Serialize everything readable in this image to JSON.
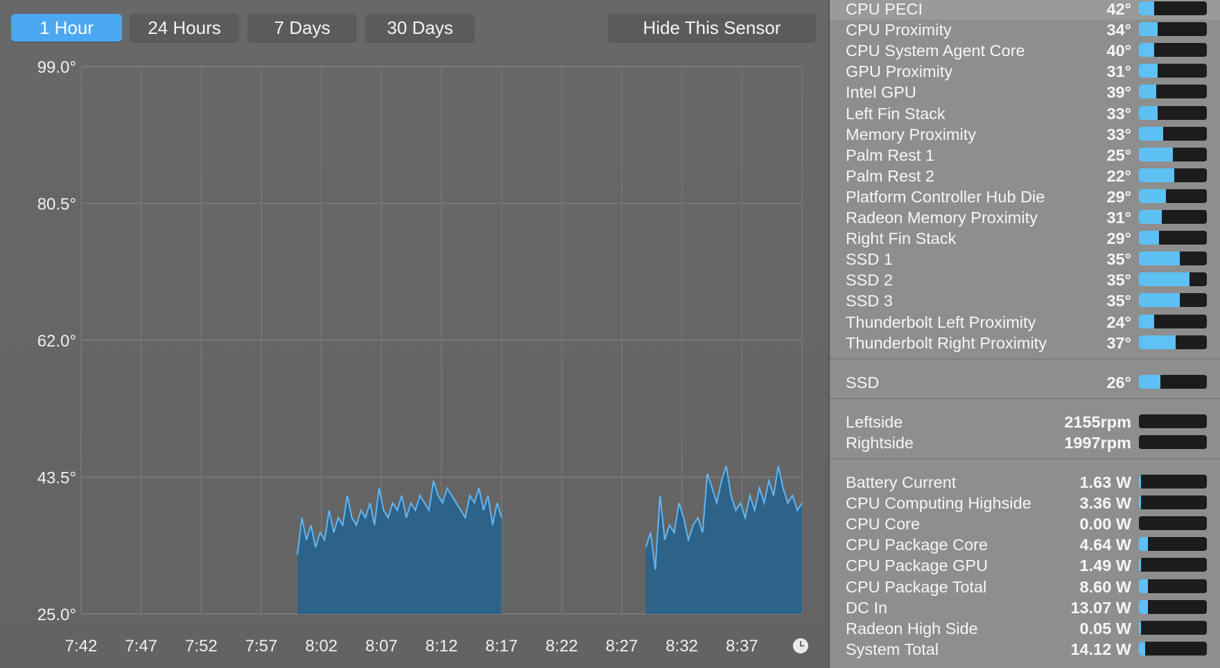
{
  "tabs": [
    {
      "label": "1 Hour",
      "active": true
    },
    {
      "label": "24 Hours",
      "active": false
    },
    {
      "label": "7 Days",
      "active": false
    },
    {
      "label": "30 Days",
      "active": false
    }
  ],
  "hide_button_label": "Hide This Sensor",
  "colors": {
    "accent": "#4aa8f2",
    "area_fill": "#2d6289",
    "line": "#5fb8f5",
    "bar_fill": "#5ec1f4",
    "bar_track": "#1c1c1c"
  },
  "chart_data": {
    "type": "area",
    "title": "",
    "xlabel": "",
    "ylabel": "",
    "ylim": [
      25.0,
      99.0
    ],
    "y_ticks": [
      "99.0°",
      "80.5°",
      "62.0°",
      "43.5°",
      "25.0°"
    ],
    "x_ticks": [
      "7:42",
      "7:47",
      "7:52",
      "7:57",
      "8:02",
      "8:07",
      "8:12",
      "8:17",
      "8:22",
      "8:27",
      "8:32",
      "8:37"
    ],
    "grid": true,
    "legend": "none",
    "segments": [
      {
        "start": "8:00",
        "end": "8:17",
        "values": [
          33,
          38,
          35,
          37,
          34,
          36,
          35,
          39,
          36,
          38,
          37,
          41,
          38,
          37,
          39,
          38,
          40,
          37,
          42,
          39,
          38,
          40,
          39,
          41,
          38,
          40,
          39,
          41,
          40,
          39,
          43,
          41,
          40,
          42,
          41,
          40,
          39,
          38,
          41,
          40,
          42,
          39,
          41,
          37,
          40,
          38
        ]
      },
      {
        "start": "8:29",
        "end": "8:42",
        "values": [
          34,
          36,
          31,
          41,
          35,
          37,
          36,
          40,
          38,
          35,
          37,
          38,
          36,
          44,
          42,
          40,
          43,
          45,
          41,
          39,
          40,
          38,
          41,
          39,
          42,
          40,
          43,
          41,
          45,
          42,
          40,
          41,
          39,
          40
        ]
      }
    ]
  },
  "temperature_sensors": [
    {
      "name": "CPU PECI",
      "value": "42°",
      "level": 0.22
    },
    {
      "name": "CPU Proximity",
      "value": "34°",
      "level": 0.28
    },
    {
      "name": "CPU System Agent Core",
      "value": "40°",
      "level": 0.22
    },
    {
      "name": "GPU Proximity",
      "value": "31°",
      "level": 0.28
    },
    {
      "name": "Intel GPU",
      "value": "39°",
      "level": 0.26
    },
    {
      "name": "Left Fin Stack",
      "value": "33°",
      "level": 0.28
    },
    {
      "name": "Memory Proximity",
      "value": "33°",
      "level": 0.36
    },
    {
      "name": "Palm Rest 1",
      "value": "25°",
      "level": 0.5
    },
    {
      "name": "Palm Rest 2",
      "value": "22°",
      "level": 0.52
    },
    {
      "name": "Platform Controller Hub Die",
      "value": "29°",
      "level": 0.4
    },
    {
      "name": "Radeon Memory Proximity",
      "value": "31°",
      "level": 0.34
    },
    {
      "name": "Right Fin Stack",
      "value": "29°",
      "level": 0.3
    },
    {
      "name": "SSD 1",
      "value": "35°",
      "level": 0.6
    },
    {
      "name": "SSD 2",
      "value": "35°",
      "level": 0.74
    },
    {
      "name": "SSD 3",
      "value": "35°",
      "level": 0.6
    },
    {
      "name": "Thunderbolt Left Proximity",
      "value": "24°",
      "level": 0.22
    },
    {
      "name": "Thunderbolt Right Proximity",
      "value": "37°",
      "level": 0.54
    }
  ],
  "drive_sensors": [
    {
      "name": "SSD",
      "value": "26°",
      "level": 0.32
    }
  ],
  "fans": [
    {
      "name": "Leftside",
      "value": "2155rpm",
      "level": 0
    },
    {
      "name": "Rightside",
      "value": "1997rpm",
      "level": 0
    }
  ],
  "power": [
    {
      "name": "Battery Current",
      "value": "1.63 W",
      "level": 0.02
    },
    {
      "name": "CPU Computing Highside",
      "value": "3.36 W",
      "level": 0.02
    },
    {
      "name": "CPU Core",
      "value": "0.00 W",
      "level": 0
    },
    {
      "name": "CPU Package Core",
      "value": "4.64 W",
      "level": 0.13
    },
    {
      "name": "CPU Package GPU",
      "value": "1.49 W",
      "level": 0.04
    },
    {
      "name": "CPU Package Total",
      "value": "8.60 W",
      "level": 0.13
    },
    {
      "name": "DC In",
      "value": "13.07 W",
      "level": 0.13
    },
    {
      "name": "Radeon High Side",
      "value": "0.05 W",
      "level": 0.02
    },
    {
      "name": "System Total",
      "value": "14.12 W",
      "level": 0.09
    }
  ]
}
